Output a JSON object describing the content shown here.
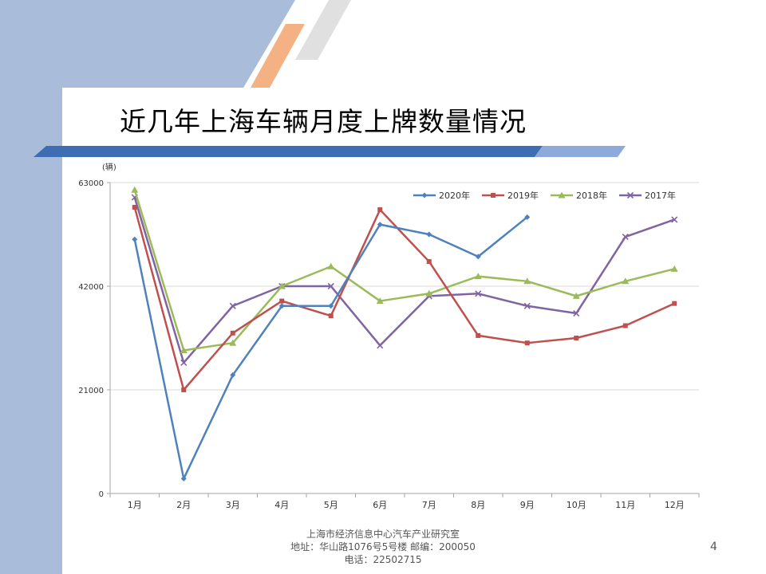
{
  "slide": {
    "title": "近几年上海车辆月度上牌数量情况",
    "page_number": "4",
    "footer": {
      "line1": "上海市经济信息中心汽车产业研究室",
      "line2": "地址：华山路1076号5号楼    邮编：200050",
      "line3": "电话：22502715"
    }
  },
  "chart_data": {
    "type": "line",
    "title": "",
    "ylabel": "(辆)",
    "xlabel": "",
    "categories": [
      "1月",
      "2月",
      "3月",
      "4月",
      "5月",
      "6月",
      "7月",
      "8月",
      "9月",
      "10月",
      "11月",
      "12月"
    ],
    "ylim": [
      0,
      63000
    ],
    "yticks": [
      0,
      21000,
      42000,
      63000
    ],
    "yticklabels": [
      "0",
      "21000",
      "42000",
      "63000"
    ],
    "grid": true,
    "legend_position": "top-right",
    "series": [
      {
        "name": "2020年",
        "color": "#4f81bd",
        "marker": "diamond",
        "values": [
          51500,
          3000,
          24000,
          38000,
          38000,
          54500,
          52500,
          48000,
          56000,
          null,
          null,
          null
        ]
      },
      {
        "name": "2019年",
        "color": "#c0504d",
        "marker": "square",
        "values": [
          58000,
          21000,
          32500,
          39000,
          36000,
          57500,
          47000,
          32000,
          30500,
          31500,
          34000,
          38500
        ]
      },
      {
        "name": "2018年",
        "color": "#9bbb59",
        "marker": "triangle",
        "values": [
          61500,
          29000,
          30500,
          42000,
          46000,
          39000,
          40500,
          44000,
          43000,
          40000,
          43000,
          45500
        ]
      },
      {
        "name": "2017年",
        "color": "#8064a2",
        "marker": "x",
        "values": [
          60000,
          26500,
          38000,
          42000,
          42000,
          30000,
          40000,
          40500,
          38000,
          36500,
          52000,
          55500
        ]
      }
    ]
  }
}
